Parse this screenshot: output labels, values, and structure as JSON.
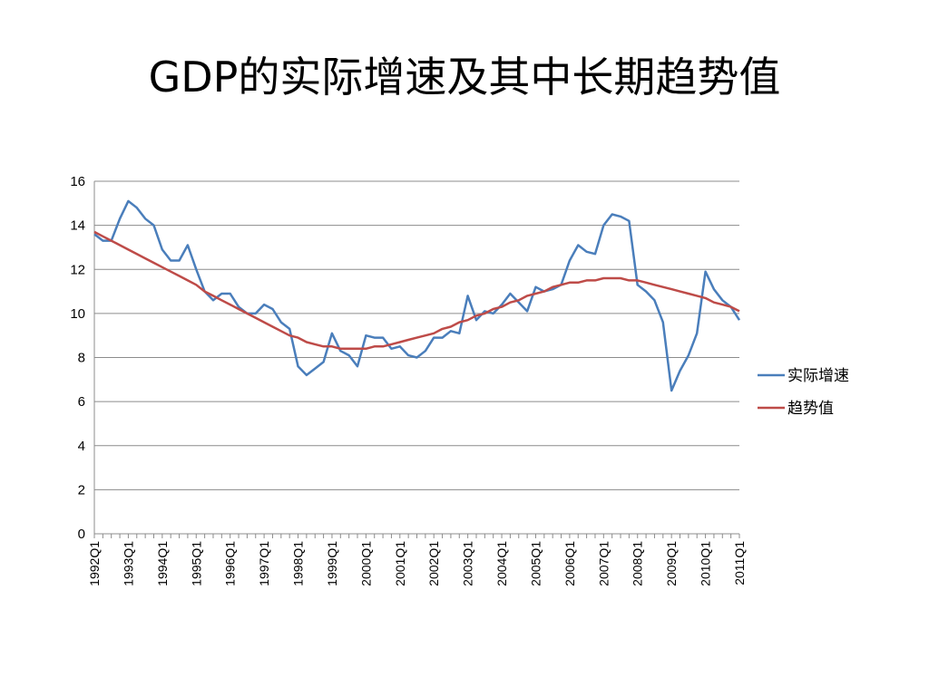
{
  "slide": {
    "title": "GDP的实际增速及其中长期趋势值"
  },
  "chart_data": {
    "type": "line",
    "ylim": [
      0,
      16
    ],
    "y_ticks": [
      0,
      2,
      4,
      6,
      8,
      10,
      12,
      14,
      16
    ],
    "grid": true,
    "legend_position": "right",
    "x_start": "1992Q1",
    "x_labels": [
      "1992Q1",
      "1993Q1",
      "1994Q1",
      "1995Q1",
      "1996Q1",
      "1997Q1",
      "1998Q1",
      "1999Q1",
      "2000Q1",
      "2001Q1",
      "2002Q1",
      "2003Q1",
      "2004Q1",
      "2005Q1",
      "2006Q1",
      "2007Q1",
      "2008Q1",
      "2009Q1",
      "2010Q1",
      "2011Q1"
    ],
    "series": [
      {
        "name": "实际增速",
        "color": "#4A7EBB",
        "values": [
          13.6,
          13.3,
          13.3,
          14.3,
          15.1,
          14.8,
          14.3,
          14.0,
          12.9,
          12.4,
          12.4,
          13.1,
          12.0,
          11.0,
          10.6,
          10.9,
          10.9,
          10.3,
          10.0,
          10.0,
          10.4,
          10.2,
          9.6,
          9.3,
          7.6,
          7.2,
          7.5,
          7.8,
          9.1,
          8.3,
          8.1,
          7.6,
          9.0,
          8.9,
          8.9,
          8.4,
          8.5,
          8.1,
          8.0,
          8.3,
          8.9,
          8.9,
          9.2,
          9.1,
          10.8,
          9.7,
          10.1,
          10.0,
          10.4,
          10.9,
          10.5,
          10.1,
          11.2,
          11.0,
          11.1,
          11.3,
          12.4,
          13.1,
          12.8,
          12.7,
          14.0,
          14.5,
          14.4,
          14.2,
          11.3,
          11.0,
          10.6,
          9.6,
          6.5,
          7.4,
          8.1,
          9.1,
          11.9,
          11.1,
          10.6,
          10.3,
          9.7
        ]
      },
      {
        "name": "趋势值",
        "color": "#BE4B48",
        "values": [
          13.7,
          13.5,
          13.3,
          13.1,
          12.9,
          12.7,
          12.5,
          12.3,
          12.1,
          11.9,
          11.7,
          11.5,
          11.3,
          11.0,
          10.8,
          10.6,
          10.4,
          10.2,
          10.0,
          9.8,
          9.6,
          9.4,
          9.2,
          9.0,
          8.9,
          8.7,
          8.6,
          8.5,
          8.5,
          8.4,
          8.4,
          8.4,
          8.4,
          8.5,
          8.5,
          8.6,
          8.7,
          8.8,
          8.9,
          9.0,
          9.1,
          9.3,
          9.4,
          9.6,
          9.7,
          9.9,
          10.0,
          10.2,
          10.3,
          10.5,
          10.6,
          10.8,
          10.9,
          11.0,
          11.2,
          11.3,
          11.4,
          11.4,
          11.5,
          11.5,
          11.6,
          11.6,
          11.6,
          11.5,
          11.5,
          11.4,
          11.3,
          11.2,
          11.1,
          11.0,
          10.9,
          10.8,
          10.7,
          10.5,
          10.4,
          10.3,
          10.1
        ]
      }
    ]
  }
}
